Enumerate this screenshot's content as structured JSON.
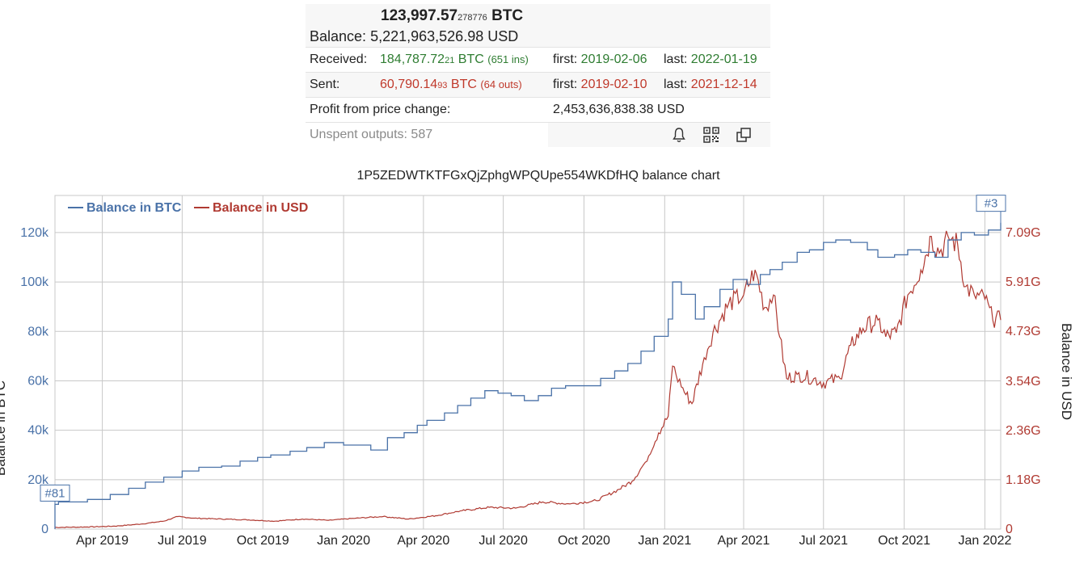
{
  "summary": {
    "btc_main": "123,997.57",
    "btc_frac": "278776",
    "btc_unit": "BTC",
    "balance_label": "Balance:",
    "balance_usd": "5,221,963,526.98 USD",
    "received_label": "Received:",
    "received_main": "184,787.72",
    "received_frac": "21",
    "received_unit": "BTC",
    "received_ins": "(651 ins)",
    "received_first_label": "first:",
    "received_first": "2019-02-06",
    "received_last_label": "last:",
    "received_last": "2022-01-19",
    "sent_label": "Sent:",
    "sent_main": "60,790.14",
    "sent_frac": "93",
    "sent_unit": "BTC",
    "sent_outs": "(64 outs)",
    "sent_first_label": "first:",
    "sent_first": "2019-02-10",
    "sent_last_label": "last:",
    "sent_last": "2021-12-14",
    "profit_label": "Profit from price change:",
    "profit_value": "2,453,636,838.38 USD",
    "unspent_label": "Unspent outputs: 587",
    "icons": [
      "bell-icon",
      "qr-code-icon",
      "copy-icon"
    ]
  },
  "chart_data": {
    "type": "line",
    "title": "1P5ZEDWTKTFGxQjZphgWPQUpe554WKDfHQ balance chart",
    "ylabel": "Balance in BTC",
    "y2label": "Balance in USD",
    "legend": [
      "Balance in BTC",
      "Balance in USD"
    ],
    "legend_position": "top-left",
    "colors": {
      "btc": "#4a72a8",
      "usd": "#b03a32",
      "grid": "#c8c8c8"
    },
    "x_ticks": [
      "Apr 2019",
      "Jul 2019",
      "Oct 2019",
      "Jan 2020",
      "Apr 2020",
      "Jul 2020",
      "Oct 2020",
      "Jan 2021",
      "Apr 2021",
      "Jul 2021",
      "Oct 2021",
      "Jan 2022"
    ],
    "x_tick_dates": [
      "2019-04-01",
      "2019-07-01",
      "2019-10-01",
      "2020-01-01",
      "2020-04-01",
      "2020-07-01",
      "2020-10-01",
      "2021-01-01",
      "2021-04-01",
      "2021-07-01",
      "2021-10-01",
      "2022-01-01"
    ],
    "x_range": [
      "2019-02-06",
      "2022-01-19"
    ],
    "y_ticks": [
      "0",
      "20k",
      "40k",
      "60k",
      "80k",
      "100k",
      "120k"
    ],
    "y_tick_values": [
      0,
      20000,
      40000,
      60000,
      80000,
      100000,
      120000
    ],
    "y_range": [
      0,
      135000
    ],
    "y2_ticks": [
      "0",
      "1.18G",
      "2.36G",
      "3.54G",
      "4.73G",
      "5.91G",
      "7.09G"
    ],
    "y2_tick_values": [
      0,
      1.18,
      2.36,
      3.54,
      4.73,
      5.91,
      7.09
    ],
    "y2_range": [
      0,
      7.98
    ],
    "markers": [
      {
        "label": "#81",
        "date": "2019-02-06",
        "value": 10000
      },
      {
        "label": "#3",
        "date": "2022-01-19",
        "value": 124000
      }
    ],
    "series": [
      {
        "name": "Balance in BTC",
        "axis": "left",
        "step": true,
        "x": [
          "2019-02-06",
          "2019-02-10",
          "2019-03-15",
          "2019-04-10",
          "2019-05-01",
          "2019-05-20",
          "2019-06-10",
          "2019-07-01",
          "2019-07-20",
          "2019-08-15",
          "2019-09-05",
          "2019-09-25",
          "2019-10-10",
          "2019-11-01",
          "2019-11-20",
          "2019-12-10",
          "2020-01-01",
          "2020-02-01",
          "2020-02-20",
          "2020-03-10",
          "2020-03-25",
          "2020-04-05",
          "2020-04-25",
          "2020-05-10",
          "2020-05-25",
          "2020-06-10",
          "2020-06-25",
          "2020-07-10",
          "2020-07-25",
          "2020-08-10",
          "2020-08-25",
          "2020-09-10",
          "2020-10-01",
          "2020-10-20",
          "2020-11-05",
          "2020-11-20",
          "2020-12-05",
          "2020-12-20",
          "2021-01-05",
          "2021-01-10",
          "2021-01-20",
          "2021-02-05",
          "2021-02-15",
          "2021-03-05",
          "2021-03-20",
          "2021-04-05",
          "2021-04-20",
          "2021-05-01",
          "2021-05-15",
          "2021-06-01",
          "2021-06-15",
          "2021-07-01",
          "2021-07-15",
          "2021-08-01",
          "2021-08-20",
          "2021-09-01",
          "2021-09-20",
          "2021-10-05",
          "2021-10-20",
          "2021-11-05",
          "2021-11-20",
          "2021-12-05",
          "2021-12-20",
          "2022-01-05",
          "2022-01-19"
        ],
        "values": [
          10000,
          11000,
          12000,
          14000,
          16500,
          19000,
          21000,
          23500,
          25000,
          25500,
          27500,
          29000,
          30000,
          31500,
          33000,
          35000,
          34000,
          32000,
          37000,
          39000,
          42000,
          44000,
          47000,
          50000,
          53000,
          56000,
          55000,
          54000,
          52000,
          54000,
          57000,
          58000,
          58000,
          61000,
          64000,
          67000,
          72000,
          78000,
          85000,
          100000,
          95000,
          85000,
          90000,
          97000,
          101000,
          99000,
          103000,
          105000,
          108000,
          112000,
          113000,
          116000,
          117000,
          116000,
          113000,
          110000,
          111000,
          113000,
          112000,
          110000,
          117000,
          120000,
          119000,
          121000,
          124000
        ]
      },
      {
        "name": "Balance in USD",
        "axis": "right",
        "unit": "G USD",
        "x": [
          "2019-02-06",
          "2019-03-15",
          "2019-04-15",
          "2019-05-15",
          "2019-06-10",
          "2019-06-26",
          "2019-07-15",
          "2019-08-15",
          "2019-09-15",
          "2019-10-15",
          "2019-11-15",
          "2019-12-15",
          "2020-01-15",
          "2020-02-15",
          "2020-03-15",
          "2020-04-15",
          "2020-05-15",
          "2020-06-15",
          "2020-07-15",
          "2020-08-15",
          "2020-09-15",
          "2020-10-15",
          "2020-11-10",
          "2020-11-25",
          "2020-12-10",
          "2020-12-25",
          "2021-01-05",
          "2021-01-10",
          "2021-01-20",
          "2021-02-01",
          "2021-02-15",
          "2021-02-25",
          "2021-03-15",
          "2021-04-01",
          "2021-04-14",
          "2021-04-25",
          "2021-05-05",
          "2021-05-12",
          "2021-05-20",
          "2021-06-01",
          "2021-06-20",
          "2021-07-01",
          "2021-07-20",
          "2021-08-01",
          "2021-08-15",
          "2021-09-01",
          "2021-09-10",
          "2021-09-22",
          "2021-10-05",
          "2021-10-20",
          "2021-11-01",
          "2021-11-10",
          "2021-11-20",
          "2021-12-01",
          "2021-12-10",
          "2021-12-20",
          "2022-01-01",
          "2022-01-10",
          "2022-01-19"
        ],
        "values": [
          0.04,
          0.05,
          0.07,
          0.12,
          0.19,
          0.3,
          0.26,
          0.24,
          0.22,
          0.19,
          0.24,
          0.21,
          0.26,
          0.3,
          0.24,
          0.32,
          0.44,
          0.52,
          0.5,
          0.65,
          0.6,
          0.68,
          0.95,
          1.15,
          1.6,
          2.3,
          2.7,
          3.9,
          3.4,
          3.0,
          4.1,
          4.7,
          5.4,
          5.6,
          6.2,
          5.3,
          5.6,
          4.6,
          3.6,
          3.7,
          3.6,
          3.5,
          3.6,
          4.4,
          4.8,
          5.0,
          4.6,
          4.7,
          5.6,
          6.2,
          7.0,
          6.6,
          7.0,
          6.8,
          5.8,
          5.6,
          5.5,
          5.0,
          5.0
        ]
      }
    ]
  }
}
